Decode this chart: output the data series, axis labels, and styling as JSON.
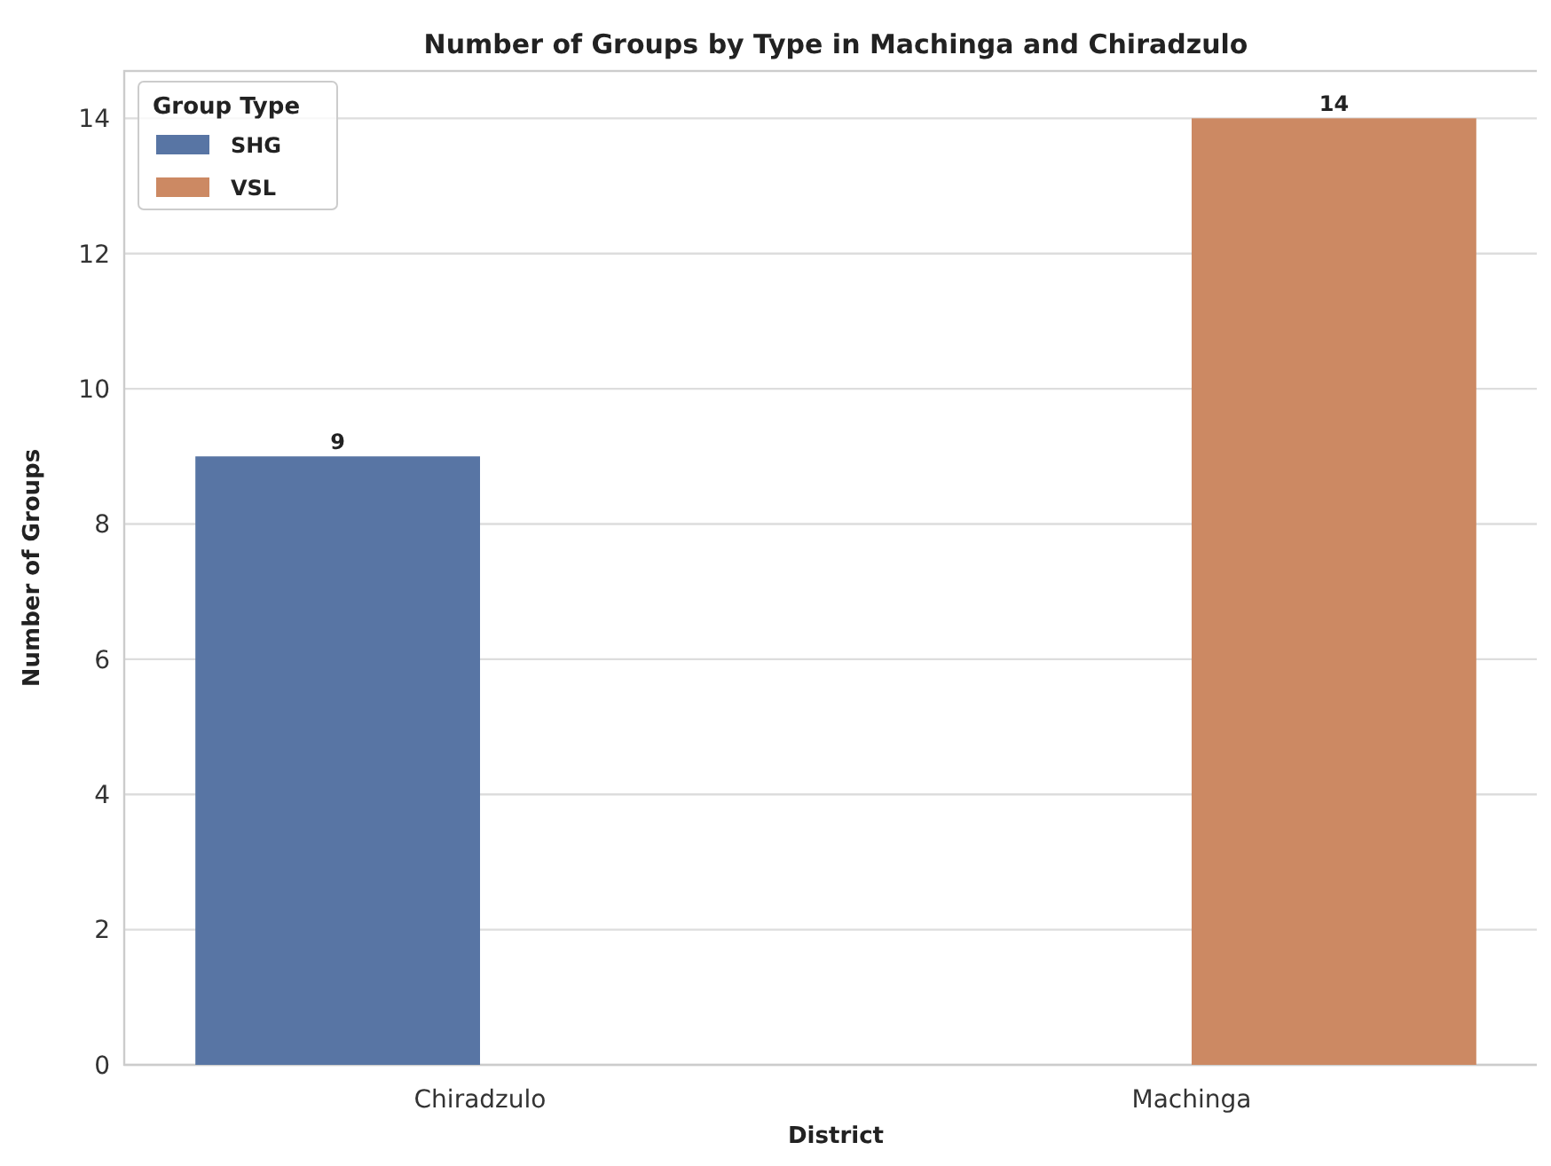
{
  "chart_data": {
    "type": "bar",
    "title": "Number of Groups by Type in Machinga and Chiradzulo",
    "xlabel": "District",
    "ylabel": "Number of Groups",
    "legend_title": "Group Type",
    "categories": [
      "Chiradzulo",
      "Machinga"
    ],
    "series": [
      {
        "name": "SHG",
        "color": "#5875a4",
        "values": [
          9,
          null
        ]
      },
      {
        "name": "VSL",
        "color": "#cc8963",
        "values": [
          null,
          14
        ]
      }
    ],
    "ylim": [
      0,
      14.7
    ],
    "yticks": [
      0,
      2,
      4,
      6,
      8,
      10,
      12,
      14
    ],
    "grid": "y",
    "legend": "top left",
    "data_labels": true
  }
}
